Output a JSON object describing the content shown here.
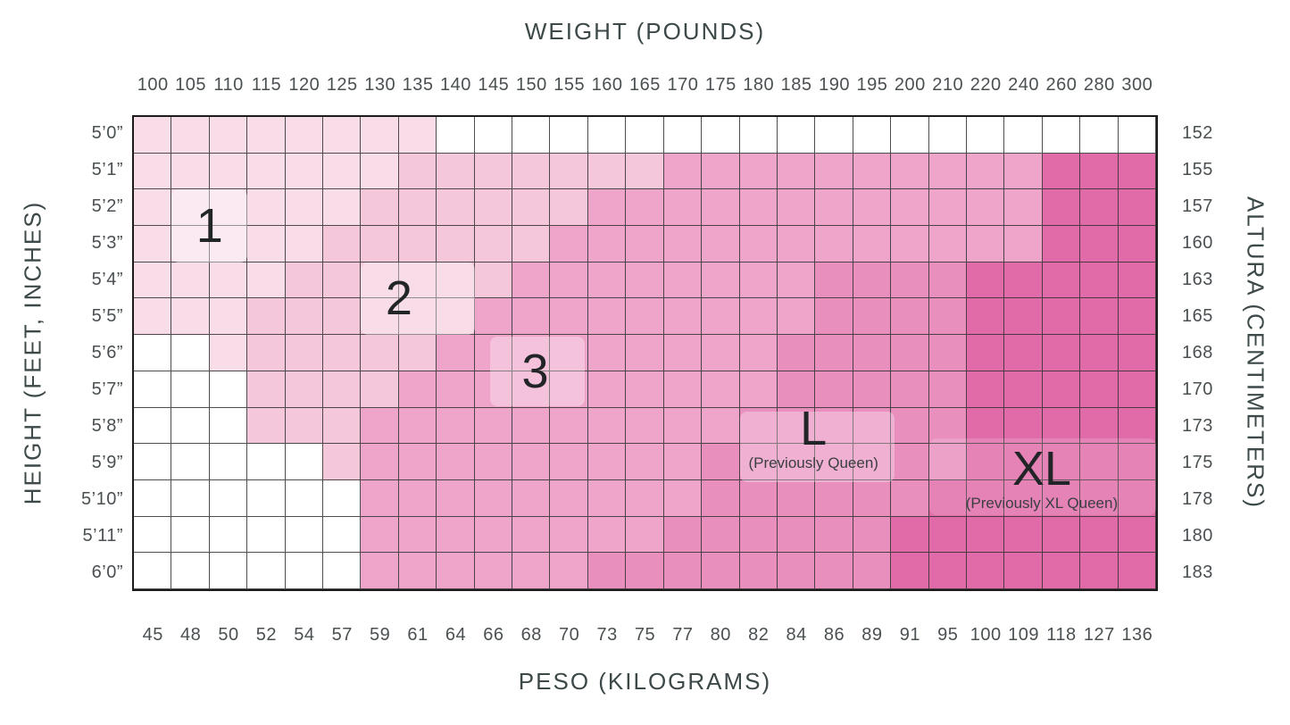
{
  "titles": {
    "top": "WEIGHT (POUNDS)",
    "bottom": "PESO (KILOGRAMS)",
    "left": "HEIGHT (FEET, INCHES)",
    "right": "ALTURA (CENTIMETERS)"
  },
  "axes": {
    "top_ticks": [
      "100",
      "105",
      "110",
      "115",
      "120",
      "125",
      "130",
      "135",
      "140",
      "145",
      "150",
      "155",
      "160",
      "165",
      "170",
      "175",
      "180",
      "185",
      "190",
      "195",
      "200",
      "210",
      "220",
      "240",
      "260",
      "280",
      "300"
    ],
    "bottom_ticks": [
      "45",
      "48",
      "50",
      "52",
      "54",
      "57",
      "59",
      "61",
      "64",
      "66",
      "68",
      "70",
      "73",
      "75",
      "77",
      "80",
      "82",
      "84",
      "86",
      "89",
      "91",
      "95",
      "100",
      "109",
      "118",
      "127",
      "136"
    ],
    "left_ticks": [
      "5’0”",
      "5’1”",
      "5’2”",
      "5’3”",
      "5’4”",
      "5’5”",
      "5’6”",
      "5’7”",
      "5’8”",
      "5’9”",
      "5’10”",
      "5’11”",
      "6’0”"
    ],
    "right_ticks": [
      "152",
      "155",
      "157",
      "160",
      "163",
      "165",
      "168",
      "170",
      "173",
      "175",
      "178",
      "180",
      "183"
    ]
  },
  "chart_data": {
    "type": "heatmap",
    "title": "WEIGHT (POUNDS)",
    "xlabel_top": "WEIGHT (POUNDS)",
    "xlabel_bottom": "PESO (KILOGRAMS)",
    "ylabel_left": "HEIGHT (FEET, INCHES)",
    "ylabel_right": "ALTURA (CENTIMETERS)",
    "columns_weight_lbs": [
      100,
      105,
      110,
      115,
      120,
      125,
      130,
      135,
      140,
      145,
      150,
      155,
      160,
      165,
      170,
      175,
      180,
      185,
      190,
      195,
      200,
      210,
      220,
      240,
      260,
      280,
      300
    ],
    "columns_weight_kg": [
      45,
      48,
      50,
      52,
      54,
      57,
      59,
      61,
      64,
      66,
      68,
      70,
      73,
      75,
      77,
      80,
      82,
      84,
      86,
      89,
      91,
      95,
      100,
      109,
      118,
      127,
      136
    ],
    "rows_height_ft_in": [
      "5’0”",
      "5’1”",
      "5’2”",
      "5’3”",
      "5’4”",
      "5’5”",
      "5’6”",
      "5’7”",
      "5’8”",
      "5’9”",
      "5’10”",
      "5’11”",
      "6’0”"
    ],
    "rows_height_cm": [
      152,
      155,
      157,
      160,
      163,
      165,
      168,
      170,
      173,
      175,
      178,
      180,
      183
    ],
    "zone_codes": {
      "0": "no size",
      "1": "Size 1",
      "2": "Size 2",
      "3": "Size 3",
      "4": "L (Previously Queen)",
      "5": "XL (Previously XL Queen)"
    },
    "zone_colors": {
      "0": "#ffffff",
      "1": "#f8dde9",
      "2": "#f4c7da",
      "3": "#efa5c9",
      "4": "#e98fbe",
      "5": "#e16ba9"
    },
    "grid_line_color": "#3f3f3f",
    "zone_map": [
      "111111110000000000000000000",
      "111111122222223333333333555",
      "111111222222333333333333555",
      "111112222223333333333333555",
      "111122222233333333444455555",
      "111222222333333333444455555",
      "001222223333333334444455555",
      "000222233333333334444455555",
      "000222333333333344444455555",
      "000002333333333444444455555",
      "000000333333333444444555555",
      "000000333333334444445555555",
      "000000333333444444445555555"
    ],
    "zone_labels": [
      {
        "text": "1",
        "sub": "",
        "col": 2.0,
        "row": 3.0
      },
      {
        "text": "2",
        "sub": "",
        "col": 7.0,
        "row": 5.0
      },
      {
        "text": "3",
        "sub": "",
        "col": 10.6,
        "row": 7.0
      },
      {
        "text": "L",
        "sub": "(Previously Queen)",
        "col": 17.95,
        "row": 8.85
      },
      {
        "text": "XL",
        "sub": "(Previously XL Queen)",
        "col": 23.98,
        "row": 9.95
      }
    ],
    "label_patches": [
      {
        "col": 1.0,
        "row": 2.0,
        "cols": 2.0,
        "rows": 2.0,
        "alpha": 0.4
      },
      {
        "col": 6.0,
        "row": 4.0,
        "cols": 3.0,
        "rows": 2.0,
        "alpha": 0.38
      },
      {
        "col": 9.4,
        "row": 6.05,
        "cols": 2.5,
        "rows": 1.9,
        "alpha": 0.33
      },
      {
        "col": 16.0,
        "row": 8.1,
        "cols": 4.1,
        "rows": 1.95,
        "alpha": 0.3
      },
      {
        "col": 21.0,
        "row": 8.85,
        "cols": 6.0,
        "rows": 2.1,
        "alpha": 0.16
      }
    ]
  }
}
